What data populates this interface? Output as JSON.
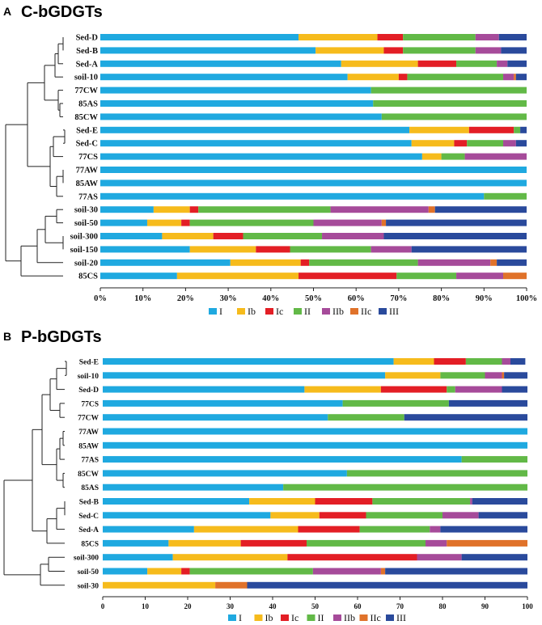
{
  "colors": {
    "I": "#1fa9e0",
    "Ib": "#f6bb1c",
    "Ic": "#e31e25",
    "II": "#62b947",
    "IIb": "#a64b9a",
    "IIc": "#e0722a",
    "III": "#2a4a9c"
  },
  "chart_data": [
    {
      "type": "bar",
      "orientation": "horizontal",
      "stacked": true,
      "panel_letter": "A",
      "title": "C-bGDGTs",
      "series_names": [
        "I",
        "Ib",
        "Ic",
        "II",
        "IIb",
        "IIc",
        "III"
      ],
      "tick_labels": [
        "0%",
        "10%",
        "20%",
        "30%",
        "40%",
        "50%",
        "60%",
        "70%",
        "80%",
        "90%",
        "100%"
      ],
      "xlim": [
        0,
        100
      ],
      "legend": [
        "I",
        "Ib",
        "Ic",
        "II",
        "IIb",
        "IIc",
        "III"
      ],
      "legend_position": "bottom",
      "dendrogram": "left",
      "rows": [
        {
          "label": "Sed-D",
          "values": [
            46.5,
            18.5,
            6.0,
            17.0,
            5.5,
            0,
            6.5
          ]
        },
        {
          "label": "Sed-B",
          "values": [
            50.5,
            16.0,
            4.5,
            17.0,
            6.0,
            0,
            6.0
          ]
        },
        {
          "label": "Sed-A",
          "values": [
            56.5,
            18.0,
            9.0,
            9.5,
            2.5,
            0,
            4.5
          ]
        },
        {
          "label": "soil-10",
          "values": [
            58.0,
            12.0,
            2.0,
            22.5,
            2.5,
            0.5,
            2.5
          ]
        },
        {
          "label": "77CW",
          "values": [
            63.5,
            0,
            0,
            36.5,
            0,
            0,
            0
          ]
        },
        {
          "label": "85AS",
          "values": [
            64.0,
            0,
            0,
            36.0,
            0,
            0,
            0
          ]
        },
        {
          "label": "85CW",
          "values": [
            66.0,
            0,
            0,
            34.0,
            0,
            0,
            0
          ]
        },
        {
          "label": "Sed-E",
          "values": [
            72.5,
            14.0,
            10.5,
            1.5,
            0,
            0,
            1.5
          ]
        },
        {
          "label": "Sed-C",
          "values": [
            73.0,
            10.0,
            3.0,
            8.5,
            3.0,
            0,
            2.5
          ]
        },
        {
          "label": "77CS",
          "values": [
            75.5,
            4.5,
            0,
            5.5,
            14.5,
            0,
            0
          ]
        },
        {
          "label": "77AW",
          "values": [
            100,
            0,
            0,
            0,
            0,
            0,
            0
          ]
        },
        {
          "label": "85AW",
          "values": [
            100,
            0,
            0,
            0,
            0,
            0,
            0
          ]
        },
        {
          "label": "77AS",
          "values": [
            90.0,
            0,
            0,
            10.0,
            0,
            0,
            0
          ]
        },
        {
          "label": "soil-30",
          "values": [
            12.5,
            8.5,
            2.0,
            31.0,
            23.0,
            1.5,
            21.5
          ]
        },
        {
          "label": "soil-50",
          "values": [
            11.0,
            8.0,
            2.0,
            29.0,
            16.0,
            1.0,
            33.0
          ]
        },
        {
          "label": "soil-300",
          "values": [
            14.5,
            12.0,
            7.0,
            18.5,
            14.5,
            0,
            33.5
          ]
        },
        {
          "label": "soil-150",
          "values": [
            21.0,
            15.5,
            8.0,
            19.0,
            9.5,
            0,
            27.0
          ]
        },
        {
          "label": "soil-20",
          "values": [
            30.5,
            16.5,
            2.0,
            25.5,
            17.0,
            1.5,
            7.0
          ]
        },
        {
          "label": "85CS",
          "values": [
            18.0,
            28.5,
            23.0,
            14.0,
            11.0,
            5.5,
            0
          ]
        }
      ]
    },
    {
      "type": "bar",
      "orientation": "horizontal",
      "stacked": true,
      "panel_letter": "B",
      "title": "P-bGDGTs",
      "series_names": [
        "I",
        "Ib",
        "Ic",
        "II",
        "IIb",
        "IIc",
        "III"
      ],
      "tick_labels": [
        "0",
        "10",
        "20",
        "30",
        "40",
        "50",
        "60",
        "70",
        "80",
        "90",
        "100"
      ],
      "xlim": [
        0,
        100
      ],
      "legend": [
        "I",
        "Ib",
        "Ic",
        "II",
        "IIb",
        "IIc",
        "III"
      ],
      "legend_position": "bottom",
      "dendrogram": "left",
      "rows": [
        {
          "label": "Sed-E",
          "values": [
            68.5,
            9.5,
            7.5,
            8.5,
            2.0,
            0,
            3.5
          ]
        },
        {
          "label": "soil-10",
          "values": [
            66.5,
            13.0,
            0,
            10.5,
            4.0,
            0.5,
            5.5
          ]
        },
        {
          "label": "Sed-D",
          "values": [
            47.5,
            18.0,
            15.5,
            2.0,
            11.0,
            0,
            6.0
          ]
        },
        {
          "label": "77CS",
          "values": [
            56.5,
            0,
            0,
            25.0,
            0,
            0,
            18.5
          ]
        },
        {
          "label": "77CW",
          "values": [
            53.0,
            0,
            0,
            18.0,
            0,
            0,
            29.0
          ]
        },
        {
          "label": "77AW",
          "values": [
            100,
            0,
            0,
            0,
            0,
            0,
            0
          ]
        },
        {
          "label": "85AW",
          "values": [
            100,
            0,
            0,
            0,
            0,
            0,
            0
          ]
        },
        {
          "label": "77AS",
          "values": [
            84.5,
            0,
            0,
            15.5,
            0,
            0,
            0
          ]
        },
        {
          "label": "85CW",
          "values": [
            57.5,
            0,
            0,
            42.5,
            0,
            0,
            0
          ]
        },
        {
          "label": "85AS",
          "values": [
            42.5,
            0,
            0,
            57.5,
            0,
            0,
            0
          ]
        },
        {
          "label": "Sed-B",
          "values": [
            34.5,
            15.5,
            13.5,
            23.0,
            0.5,
            0,
            13.0
          ]
        },
        {
          "label": "Sed-C",
          "values": [
            39.5,
            11.5,
            11.0,
            18.0,
            8.5,
            0,
            11.5
          ]
        },
        {
          "label": "Sed-A",
          "values": [
            21.5,
            24.5,
            14.5,
            16.5,
            2.5,
            0,
            20.5
          ]
        },
        {
          "label": "85CS",
          "values": [
            15.5,
            17.0,
            15.5,
            28.0,
            5.0,
            19.0,
            0
          ]
        },
        {
          "label": "soil-300",
          "values": [
            16.5,
            27.0,
            30.5,
            0,
            10.5,
            0,
            15.5
          ]
        },
        {
          "label": "soil-50",
          "values": [
            10.5,
            8.0,
            2.0,
            29.0,
            16.0,
            1.0,
            33.5
          ]
        },
        {
          "label": "soil-30",
          "values": [
            0,
            26.5,
            0,
            0,
            0,
            7.5,
            66.0
          ]
        }
      ]
    }
  ]
}
